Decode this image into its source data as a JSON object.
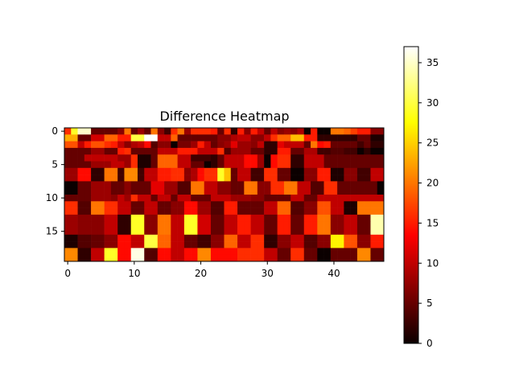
{
  "chart_data": {
    "type": "heatmap",
    "title": "Difference Heatmap",
    "xlabel": "",
    "ylabel": "",
    "colormap": "hot",
    "n_rows": 20,
    "n_cols": 48,
    "x_ticks": [
      0,
      10,
      20,
      30,
      40
    ],
    "x_tick_labels": [
      "0",
      "10",
      "20",
      "30",
      "40"
    ],
    "y_ticks": [
      0,
      5,
      10,
      15
    ],
    "y_tick_labels": [
      "0",
      "5",
      "10",
      "15"
    ],
    "colorbar": {
      "vmin": 0,
      "vmax": 37,
      "ticks": [
        0,
        5,
        10,
        15,
        20,
        25,
        30,
        35
      ],
      "tick_labels": [
        "0",
        "5",
        "10",
        "15",
        "20",
        "25",
        "30",
        "35"
      ]
    },
    "values": [
      [
        16,
        29,
        35,
        35,
        5,
        5,
        5,
        5,
        7,
        20,
        5,
        8,
        5,
        20,
        7,
        3,
        16,
        20,
        8,
        16,
        16,
        16,
        15,
        5,
        16,
        2,
        15,
        7,
        15,
        10,
        5,
        10,
        7,
        8,
        7,
        9,
        0,
        15,
        0,
        0,
        20,
        20,
        19,
        17,
        15,
        15,
        7,
        7
      ],
      [
        23,
        23,
        5,
        5,
        11,
        11,
        19,
        19,
        15,
        15,
        30,
        30,
        37,
        37,
        10,
        10,
        19,
        5,
        5,
        5,
        5,
        5,
        5,
        7,
        7,
        9,
        10,
        10,
        7,
        7,
        10,
        16,
        19,
        19,
        24,
        24,
        15,
        15,
        2,
        2,
        2,
        2,
        2,
        2,
        5,
        5,
        1,
        1
      ],
      [
        18,
        18,
        10,
        15,
        18,
        18,
        16,
        15,
        10,
        7,
        9,
        10,
        14,
        4,
        7,
        7,
        0,
        6,
        6,
        8,
        15,
        10,
        5,
        7,
        8,
        12,
        8,
        8,
        7,
        10,
        2,
        2,
        12,
        10,
        10,
        10,
        5,
        20,
        14,
        15,
        5,
        5,
        5,
        5,
        3,
        5,
        2,
        2
      ],
      [
        5,
        5,
        5,
        5,
        8,
        8,
        5,
        5,
        15,
        16,
        5,
        5,
        5,
        5,
        10,
        10,
        10,
        15,
        15,
        15,
        10,
        10,
        10,
        16,
        4,
        8,
        8,
        8,
        5,
        5,
        2,
        2,
        15,
        15,
        5,
        5,
        9,
        9,
        3,
        3,
        4,
        4,
        3,
        3,
        0,
        2,
        0,
        0
      ],
      [
        5,
        5,
        5,
        10,
        10,
        10,
        10,
        10,
        8,
        8,
        16,
        1,
        1,
        5,
        19,
        19,
        19,
        10,
        10,
        3,
        3,
        3,
        2,
        5,
        10,
        10,
        10,
        14,
        14,
        8,
        0,
        14,
        16,
        16,
        2,
        2,
        10,
        10,
        10,
        5,
        5,
        5,
        5,
        5,
        5,
        5,
        5,
        5
      ],
      [
        5,
        5,
        5,
        5,
        8,
        8,
        8,
        10,
        10,
        8,
        16,
        1,
        1,
        5,
        19,
        19,
        19,
        10,
        10,
        5,
        5,
        0,
        2,
        5,
        10,
        10,
        10,
        14,
        14,
        8,
        0,
        14,
        16,
        16,
        2,
        2,
        10,
        10,
        10,
        5,
        5,
        5,
        5,
        5,
        5,
        5,
        5,
        5
      ],
      [
        8,
        8,
        14,
        14,
        2,
        2,
        20,
        20,
        3,
        21,
        21,
        3,
        10,
        10,
        15,
        15,
        16,
        16,
        7,
        9,
        14,
        16,
        16,
        29,
        24,
        5,
        10,
        10,
        3,
        3,
        16,
        16,
        5,
        5,
        0,
        0,
        7,
        7,
        15,
        15,
        1,
        1,
        7,
        7,
        3,
        3,
        10,
        10
      ],
      [
        8,
        8,
        14,
        14,
        2,
        2,
        20,
        20,
        3,
        21,
        21,
        3,
        10,
        10,
        15,
        15,
        16,
        16,
        7,
        9,
        14,
        16,
        16,
        29,
        24,
        5,
        10,
        10,
        3,
        3,
        16,
        16,
        5,
        5,
        0,
        0,
        7,
        7,
        15,
        15,
        1,
        1,
        7,
        7,
        3,
        3,
        10,
        10
      ],
      [
        0,
        0,
        5,
        5,
        8,
        8,
        8,
        5,
        5,
        7,
        5,
        5,
        5,
        12,
        12,
        8,
        8,
        4,
        4,
        20,
        20,
        10,
        10,
        7,
        7,
        5,
        5,
        20,
        20,
        7,
        7,
        16,
        16,
        20,
        20,
        10,
        10,
        4,
        4,
        16,
        16,
        5,
        5,
        5,
        5,
        5,
        5,
        0
      ],
      [
        0,
        0,
        5,
        5,
        8,
        8,
        8,
        5,
        5,
        7,
        5,
        5,
        5,
        12,
        12,
        8,
        8,
        4,
        4,
        20,
        20,
        10,
        10,
        7,
        7,
        5,
        5,
        20,
        20,
        7,
        7,
        16,
        16,
        20,
        20,
        10,
        10,
        4,
        4,
        16,
        16,
        5,
        5,
        5,
        5,
        5,
        5,
        0
      ],
      [
        5,
        5,
        5,
        5,
        8,
        8,
        8,
        7,
        10,
        8,
        16,
        10,
        10,
        5,
        10,
        10,
        5,
        10,
        10,
        5,
        5,
        5,
        10,
        10,
        10,
        8,
        8,
        8,
        7,
        7,
        5,
        5,
        5,
        5,
        10,
        10,
        5,
        5,
        10,
        10,
        10,
        10,
        10,
        10,
        10,
        10,
        10,
        10
      ],
      [
        16,
        16,
        4,
        4,
        20,
        20,
        16,
        16,
        10,
        10,
        5,
        5,
        10,
        10,
        5,
        5,
        7,
        7,
        14,
        14,
        8,
        8,
        4,
        4,
        15,
        15,
        5,
        5,
        5,
        5,
        10,
        10,
        19,
        19,
        4,
        4,
        7,
        7,
        18,
        18,
        10,
        10,
        1,
        1,
        20,
        20,
        20,
        20
      ],
      [
        16,
        16,
        4,
        4,
        20,
        20,
        16,
        16,
        10,
        10,
        5,
        5,
        10,
        10,
        5,
        5,
        7,
        7,
        14,
        14,
        8,
        8,
        4,
        4,
        15,
        15,
        5,
        5,
        5,
        5,
        10,
        10,
        19,
        19,
        4,
        4,
        7,
        7,
        18,
        18,
        10,
        10,
        1,
        1,
        20,
        20,
        20,
        20
      ],
      [
        8,
        8,
        7,
        7,
        7,
        7,
        10,
        10,
        2,
        2,
        29,
        29,
        7,
        7,
        20,
        20,
        10,
        10,
        29,
        29,
        11,
        11,
        5,
        5,
        10,
        10,
        15,
        15,
        10,
        10,
        5,
        5,
        15,
        15,
        5,
        5,
        15,
        15,
        20,
        20,
        7,
        7,
        10,
        10,
        5,
        5,
        34,
        34
      ],
      [
        8,
        8,
        7,
        7,
        7,
        7,
        10,
        10,
        2,
        2,
        29,
        29,
        7,
        7,
        20,
        20,
        10,
        10,
        29,
        29,
        11,
        11,
        5,
        5,
        10,
        10,
        15,
        15,
        10,
        10,
        5,
        5,
        15,
        15,
        5,
        5,
        15,
        15,
        20,
        20,
        7,
        7,
        10,
        10,
        5,
        5,
        34,
        34
      ],
      [
        8,
        8,
        7,
        7,
        7,
        7,
        10,
        10,
        2,
        2,
        29,
        29,
        7,
        7,
        20,
        20,
        10,
        10,
        29,
        29,
        11,
        11,
        5,
        5,
        10,
        10,
        15,
        15,
        10,
        10,
        5,
        5,
        15,
        15,
        5,
        5,
        15,
        15,
        20,
        20,
        7,
        7,
        10,
        10,
        5,
        5,
        34,
        34
      ],
      [
        1,
        1,
        4,
        4,
        5,
        5,
        7,
        7,
        14,
        14,
        10,
        10,
        30,
        30,
        19,
        19,
        10,
        10,
        5,
        5,
        3,
        3,
        7,
        7,
        19,
        19,
        10,
        10,
        16,
        16,
        2,
        2,
        7,
        7,
        10,
        10,
        4,
        4,
        7,
        7,
        27,
        27,
        18,
        18,
        7,
        7,
        15,
        15
      ],
      [
        1,
        1,
        4,
        4,
        5,
        5,
        7,
        7,
        14,
        14,
        10,
        10,
        30,
        30,
        19,
        19,
        10,
        10,
        5,
        5,
        3,
        3,
        7,
        7,
        19,
        19,
        10,
        10,
        16,
        16,
        2,
        2,
        7,
        7,
        10,
        10,
        4,
        4,
        7,
        7,
        27,
        27,
        18,
        18,
        7,
        7,
        15,
        15
      ],
      [
        21,
        21,
        2,
        2,
        10,
        10,
        29,
        29,
        14,
        14,
        36,
        36,
        4,
        4,
        14,
        14,
        10,
        10,
        14,
        14,
        21,
        21,
        14,
        14,
        14,
        14,
        16,
        16,
        16,
        16,
        10,
        10,
        5,
        5,
        16,
        16,
        5,
        5,
        0,
        0,
        5,
        5,
        5,
        5,
        21,
        21,
        5,
        5
      ],
      [
        21,
        21,
        2,
        2,
        10,
        10,
        29,
        29,
        14,
        14,
        36,
        36,
        4,
        4,
        14,
        14,
        10,
        10,
        14,
        14,
        21,
        21,
        14,
        14,
        14,
        14,
        16,
        16,
        16,
        16,
        10,
        10,
        5,
        5,
        16,
        16,
        5,
        5,
        0,
        0,
        5,
        5,
        5,
        5,
        21,
        21,
        5,
        5
      ]
    ]
  }
}
